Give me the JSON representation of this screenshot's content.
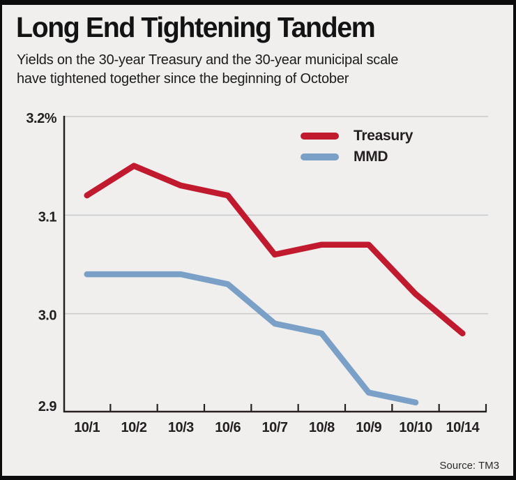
{
  "header": {
    "title": "Long End Tightening Tandem",
    "subtitle_line1": "Yields on the 30-year Treasury and the 30-year municipal scale",
    "subtitle_line2": "have tightened together since the beginning of October"
  },
  "footer": {
    "source": "Source: TM3"
  },
  "colors": {
    "treasury_line": "#c11a2e",
    "mmd_line": "#7aa0c8",
    "gridline": "#c9c9c9",
    "axis": "#26211f",
    "background": "#f0efee",
    "frame_border": "#0c0c0c"
  },
  "chart_data": {
    "type": "line",
    "title": "Long End Tightening Tandem",
    "categories": [
      "10/1",
      "10/2",
      "10/3",
      "10/6",
      "10/7",
      "10/8",
      "10/9",
      "10/10",
      "10/14"
    ],
    "series": [
      {
        "name": "Treasury",
        "color": "#c11a2e",
        "values": [
          3.12,
          3.15,
          3.13,
          3.12,
          3.06,
          3.07,
          3.07,
          3.02,
          2.98
        ]
      },
      {
        "name": "MMD",
        "color": "#7aa0c8",
        "values": [
          3.04,
          3.04,
          3.04,
          3.03,
          2.99,
          2.98,
          2.92,
          2.91,
          null
        ]
      }
    ],
    "xlabel": "",
    "ylabel": "",
    "ylim": [
      2.9,
      3.2
    ],
    "yticks": [
      {
        "value": 3.2,
        "label": "3.2%"
      },
      {
        "value": 3.1,
        "label": "3.1"
      },
      {
        "value": 3.0,
        "label": "3.0"
      },
      {
        "value": 2.9,
        "label": "2.9"
      }
    ],
    "grid": "horizontal",
    "legend_position": "top-right-inside"
  }
}
